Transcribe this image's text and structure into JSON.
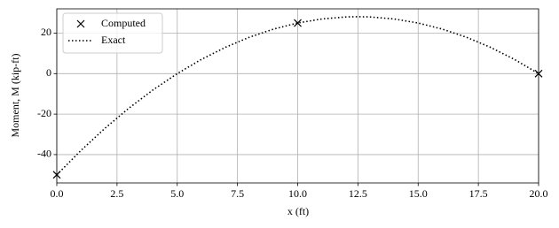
{
  "chart_data": {
    "type": "line",
    "xlabel": "x (ft)",
    "ylabel": "Moment, M (kip-ft)",
    "series": [
      {
        "name": "Computed",
        "color": "#000000",
        "marker": "x",
        "line": "none",
        "x": [
          0,
          10,
          20
        ],
        "values": [
          -50,
          25,
          0
        ]
      },
      {
        "name": "Exact",
        "color": "#000000",
        "marker": "none",
        "line": "dotted",
        "x": [
          0,
          1,
          2,
          3,
          4,
          5,
          6,
          7,
          8,
          9,
          10,
          11,
          12,
          12.5,
          13,
          14,
          15,
          16,
          17,
          18,
          19,
          20
        ],
        "values": [
          -50,
          -38,
          -27,
          -17,
          -8,
          0,
          7,
          13,
          18,
          22,
          25,
          27,
          28,
          28.125,
          28,
          27,
          25,
          22,
          18,
          13,
          7,
          0
        ]
      }
    ],
    "xlim": [
      0,
      20
    ],
    "ylim": [
      -54,
      32
    ],
    "xticks": [
      {
        "value": 0,
        "label": "0.0"
      },
      {
        "value": 2.5,
        "label": "2.5"
      },
      {
        "value": 5,
        "label": "5.0"
      },
      {
        "value": 7.5,
        "label": "7.5"
      },
      {
        "value": 10,
        "label": "10.0"
      },
      {
        "value": 12.5,
        "label": "12.5"
      },
      {
        "value": 15,
        "label": "15.0"
      },
      {
        "value": 17.5,
        "label": "17.5"
      },
      {
        "value": 20,
        "label": "20.0"
      }
    ],
    "yticks": [
      -40,
      -20,
      0,
      20
    ],
    "grid": true,
    "legend": "upper-left"
  }
}
